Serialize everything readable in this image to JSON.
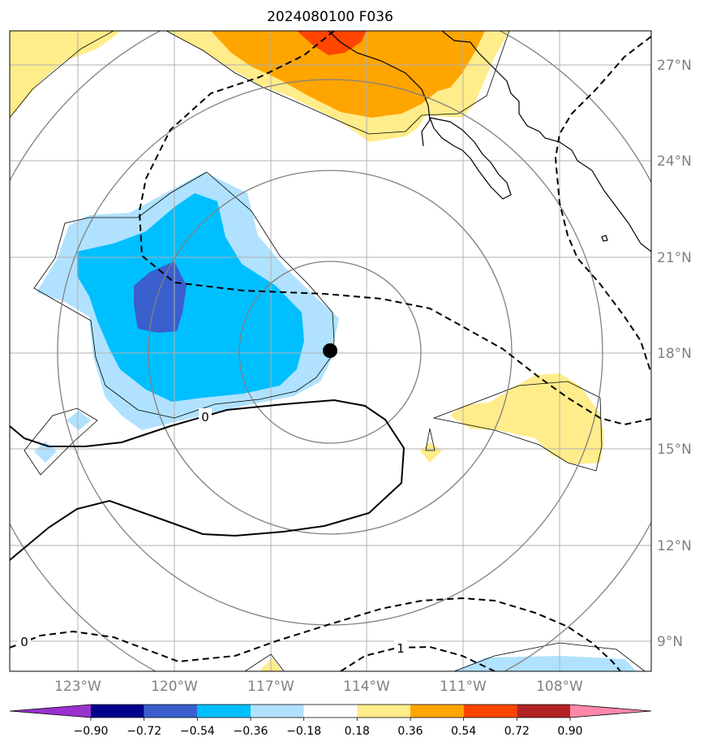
{
  "chart_data": {
    "type": "contour_map",
    "title": "2024080100 F036",
    "x_ticks": [
      "123°W",
      "120°W",
      "117°W",
      "114°W",
      "111°W",
      "108°W"
    ],
    "y_ticks": [
      "27°N",
      "24°N",
      "21°N",
      "18°N",
      "15°N",
      "12°N",
      "9°N"
    ],
    "lon_range": [
      -125,
      -105
    ],
    "lat_range": [
      8,
      28
    ],
    "grid": true,
    "center_marker": {
      "lon": -115.1,
      "lat": 18.1
    },
    "range_rings": [
      {
        "ring": 1
      },
      {
        "ring": 2
      },
      {
        "ring": 3
      },
      {
        "ring": 4
      }
    ],
    "contour_labels": [
      {
        "text": "0",
        "lon": -118.0,
        "lat": 16.0
      },
      {
        "text": "0",
        "lon": -124.5,
        "lat": 8.9
      },
      {
        "text": "1",
        "lon": -113.0,
        "lat": 8.7
      }
    ],
    "colorbar": {
      "levels": [
        "-0.90",
        "-0.72",
        "-0.54",
        "-0.36",
        "-0.18",
        "0.18",
        "0.36",
        "0.54",
        "0.72",
        "0.90"
      ],
      "colors": [
        "#9932cc",
        "#00008b",
        "#3a5fcd",
        "#00bfff",
        "#b0e2ff",
        "#ffffff",
        "#ffec8b",
        "#ffa500",
        "#ff4500",
        "#b22222",
        "#ff88aa"
      ]
    },
    "shaded_regions": [
      {
        "fill": "#ffec8b",
        "area": "northwest corner"
      },
      {
        "fill": "#ffec8b",
        "area": "north center"
      },
      {
        "fill": "#ffa500",
        "area": "north center"
      },
      {
        "fill": "#ff4500",
        "area": "north center"
      },
      {
        "fill": "#b0e2ff",
        "area": "west center"
      },
      {
        "fill": "#00bfff",
        "area": "west center"
      },
      {
        "fill": "#3a5fcd",
        "area": "west center"
      },
      {
        "fill": "#ffec8b",
        "area": "southeast"
      },
      {
        "fill": "#b0e2ff",
        "area": "southeast edge"
      },
      {
        "fill": "#b0e2ff",
        "area": "southwest"
      }
    ]
  }
}
